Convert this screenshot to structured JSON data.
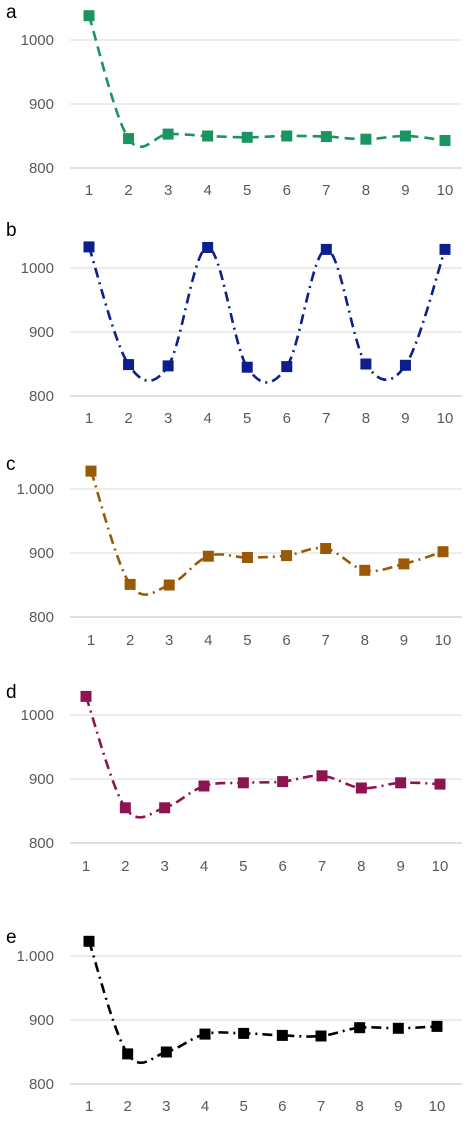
{
  "chart_data": [
    {
      "type": "line",
      "panel_label": "a",
      "color": "#1a9460",
      "line_style": "dashed",
      "marker": "square",
      "categories": [
        "1",
        "2",
        "3",
        "4",
        "5",
        "6",
        "7",
        "8",
        "9",
        "10"
      ],
      "x": [
        1,
        2,
        3,
        4,
        5,
        6,
        7,
        8,
        9,
        10
      ],
      "yticks": [
        "800",
        "900",
        "1000"
      ],
      "ylim": [
        800,
        1050
      ],
      "grid": "horizontal",
      "series": [
        {
          "values": [
            1038,
            846,
            853,
            850,
            848,
            850,
            849,
            845,
            850,
            843
          ]
        }
      ]
    },
    {
      "type": "line",
      "panel_label": "b",
      "color": "#0d1f8c",
      "line_style": "dash-dot",
      "marker": "square",
      "categories": [
        "1",
        "2",
        "3",
        "4",
        "5",
        "6",
        "7",
        "8",
        "9",
        "10"
      ],
      "x": [
        1,
        2,
        3,
        4,
        5,
        6,
        7,
        8,
        9,
        10
      ],
      "yticks": [
        "800",
        "900",
        "1000"
      ],
      "ylim": [
        800,
        1050
      ],
      "grid": "horizontal",
      "series": [
        {
          "values": [
            1033,
            849,
            847,
            1032,
            845,
            846,
            1029,
            850,
            848,
            1029
          ]
        }
      ]
    },
    {
      "type": "line",
      "panel_label": "c",
      "color": "#9a5a05",
      "line_style": "dash-dot",
      "marker": "square",
      "categories": [
        "1",
        "2",
        "3",
        "4",
        "5",
        "6",
        "7",
        "8",
        "9",
        "10"
      ],
      "x": [
        1,
        2,
        3,
        4,
        5,
        6,
        7,
        8,
        9,
        10
      ],
      "yticks": [
        "800",
        "900",
        "1.000"
      ],
      "ylim": [
        800,
        1050
      ],
      "grid": "horizontal",
      "series": [
        {
          "values": [
            1028,
            851,
            850,
            895,
            893,
            896,
            907,
            873,
            883,
            902
          ]
        }
      ]
    },
    {
      "type": "line",
      "panel_label": "d",
      "color": "#8c1450",
      "line_style": "dash-dot",
      "marker": "square",
      "categories": [
        "1",
        "2",
        "3",
        "4",
        "5",
        "6",
        "7",
        "8",
        "9",
        "10"
      ],
      "x": [
        1,
        2,
        3,
        4,
        5,
        6,
        7,
        8,
        9,
        10
      ],
      "yticks": [
        "800",
        "900",
        "1000"
      ],
      "ylim": [
        800,
        1050
      ],
      "grid": "horizontal",
      "series": [
        {
          "values": [
            1029,
            855,
            855,
            889,
            894,
            896,
            905,
            886,
            894,
            892
          ]
        }
      ]
    },
    {
      "type": "line",
      "panel_label": "e",
      "color": "#000000",
      "line_style": "dash-dot",
      "marker": "square",
      "categories": [
        "1",
        "2",
        "3",
        "4",
        "5",
        "6",
        "7",
        "8",
        "9",
        "10"
      ],
      "x": [
        1,
        2,
        3,
        4,
        5,
        6,
        7,
        8,
        9,
        10
      ],
      "yticks": [
        "800",
        "900",
        "1.000"
      ],
      "ylim": [
        800,
        1050
      ],
      "grid": "horizontal",
      "series": [
        {
          "values": [
            1023,
            847,
            850,
            878,
            879,
            876,
            875,
            888,
            887,
            890
          ]
        }
      ]
    }
  ]
}
